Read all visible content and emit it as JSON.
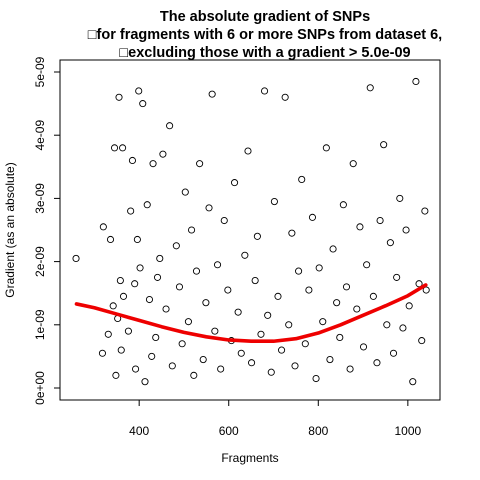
{
  "chart_data": {
    "type": "scatter",
    "title": [
      "The absolute gradient of SNPs",
      "□for fragments with 6 or more SNPs from dataset 6,",
      "□excluding those with a gradient > 5.0e-09"
    ],
    "xlabel": "Fragments",
    "ylabel": "Gradient (as an absolute)",
    "xlim": [
      250,
      1045
    ],
    "ylim": [
      0,
      5e-09
    ],
    "x_ticks": [
      400,
      600,
      800,
      1000
    ],
    "x_tick_labels": [
      "400",
      "600",
      "800",
      "1000"
    ],
    "y_ticks": [
      0,
      1e-09,
      2e-09,
      3e-09,
      4e-09,
      5e-09
    ],
    "y_tick_labels": [
      "0e+00",
      "1e-09",
      "2e-09",
      "3e-09",
      "4e-09",
      "5e-09"
    ],
    "grid": false,
    "legend": "none",
    "colors": {
      "points": "#000000",
      "trend": "#ee0000"
    },
    "series": [
      {
        "kind": "points",
        "x": [
          259,
          318,
          320,
          331,
          336,
          342,
          345,
          348,
          352,
          355,
          358,
          360,
          363,
          365,
          376,
          381,
          385,
          390,
          392,
          396,
          399,
          402,
          408,
          413,
          418,
          423,
          428,
          431,
          437,
          441,
          446,
          453,
          460,
          468,
          474,
          483,
          490,
          496,
          503,
          510,
          517,
          522,
          528,
          535,
          543,
          549,
          556,
          563,
          569,
          575,
          582,
          590,
          598,
          606,
          613,
          621,
          628,
          636,
          643,
          651,
          659,
          664,
          672,
          680,
          687,
          695,
          702,
          710,
          718,
          726,
          734,
          741,
          748,
          756,
          763,
          771,
          779,
          787,
          795,
          802,
          810,
          818,
          826,
          833,
          841,
          848,
          856,
          863,
          871,
          878,
          886,
          893,
          901,
          908,
          916,
          923,
          931,
          938,
          946,
          953,
          961,
          968,
          975,
          982,
          989,
          996,
          1003,
          1011,
          1018,
          1025,
          1031,
          1038,
          1041
        ],
        "y": [
          2.05e-09,
          5.5e-10,
          2.55e-09,
          8.5e-10,
          2.35e-09,
          1.3e-09,
          3.8e-09,
          2e-10,
          1.1e-09,
          4.6e-09,
          1.7e-09,
          6e-10,
          3.8e-09,
          1.45e-09,
          9e-10,
          2.8e-09,
          3.6e-09,
          1.65e-09,
          3e-10,
          2.35e-09,
          4.7e-09,
          1.9e-09,
          4.5e-09,
          1e-10,
          2.9e-09,
          1.4e-09,
          5e-10,
          3.55e-09,
          8e-10,
          1.75e-09,
          2.05e-09,
          3.7e-09,
          1.25e-09,
          4.15e-09,
          3.5e-10,
          2.25e-09,
          1.6e-09,
          7e-10,
          3.1e-09,
          1.05e-09,
          2.5e-09,
          2e-10,
          1.85e-09,
          3.55e-09,
          4.5e-10,
          1.35e-09,
          2.85e-09,
          4.65e-09,
          9e-10,
          1.95e-09,
          3e-10,
          2.65e-09,
          1.55e-09,
          7.5e-10,
          3.25e-09,
          1.2e-09,
          5.5e-10,
          2.1e-09,
          3.75e-09,
          4e-10,
          1.7e-09,
          2.4e-09,
          8.5e-10,
          4.7e-09,
          1.15e-09,
          2.5e-10,
          2.95e-09,
          1.45e-09,
          6e-10,
          4.6e-09,
          1e-09,
          2.45e-09,
          3.5e-10,
          1.85e-09,
          3.3e-09,
          7e-10,
          1.55e-09,
          2.7e-09,
          1.5e-10,
          1.9e-09,
          1.05e-09,
          3.8e-09,
          4.5e-10,
          2.2e-09,
          1.35e-09,
          8e-10,
          2.9e-09,
          1.6e-09,
          3e-10,
          3.55e-09,
          1.25e-09,
          2.55e-09,
          6.5e-10,
          1.95e-09,
          4.75e-09,
          1.45e-09,
          4e-10,
          2.65e-09,
          3.85e-09,
          1e-09,
          2.3e-09,
          5.5e-10,
          1.75e-09,
          3e-09,
          9.5e-10,
          2.5e-09,
          1.3e-09,
          1e-10,
          4.85e-09,
          1.65e-09,
          7.5e-10,
          2.8e-09,
          1.55e-09
        ]
      },
      {
        "kind": "trend-line",
        "x": [
          260,
          300,
          350,
          400,
          450,
          500,
          550,
          600,
          650,
          700,
          750,
          800,
          850,
          900,
          950,
          1000,
          1040
        ],
        "y": [
          1.33e-09,
          1.27e-09,
          1.17e-09,
          1.07e-09,
          9.7e-10,
          8.8e-10,
          8.1e-10,
          7.6e-10,
          7.4e-10,
          7.4e-10,
          7.8e-10,
          8.7e-10,
          1e-09,
          1.15e-09,
          1.3e-09,
          1.46e-09,
          1.63e-09
        ]
      }
    ]
  }
}
